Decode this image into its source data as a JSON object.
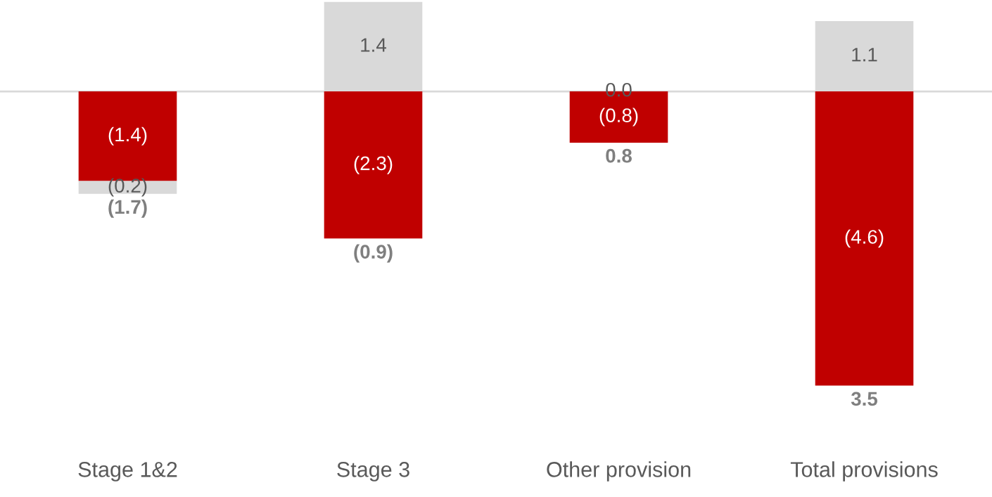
{
  "chart_data": {
    "type": "bar",
    "stacked": true,
    "categories": [
      "Stage 1&2",
      "Stage 3",
      "Other provision",
      "Total provisions"
    ],
    "series": [
      {
        "color": "#c00000",
        "values": [
          -1.4,
          -2.3,
          -0.8,
          -4.6
        ],
        "value_labels": [
          "(1.4)",
          "(2.3)",
          "(0.8)",
          "(4.6)"
        ]
      },
      {
        "color": "#d9d9d9",
        "values": [
          -0.2,
          1.4,
          0.0,
          1.1
        ],
        "value_labels": [
          "(0.2)",
          "1.4",
          "0.0",
          "1.1"
        ]
      }
    ],
    "annotations": [
      {
        "text": "(1.7)",
        "x": "Stage 1&2",
        "y": -1.6
      },
      {
        "text": "(0.9)",
        "x": "Stage 3",
        "y": -2.3
      },
      {
        "text": "0.8",
        "x": "Other provision",
        "y": -0.8
      },
      {
        "text": "3.5",
        "x": "Total provisions",
        "y": -4.6
      }
    ],
    "grid": false,
    "legend": false
  }
}
